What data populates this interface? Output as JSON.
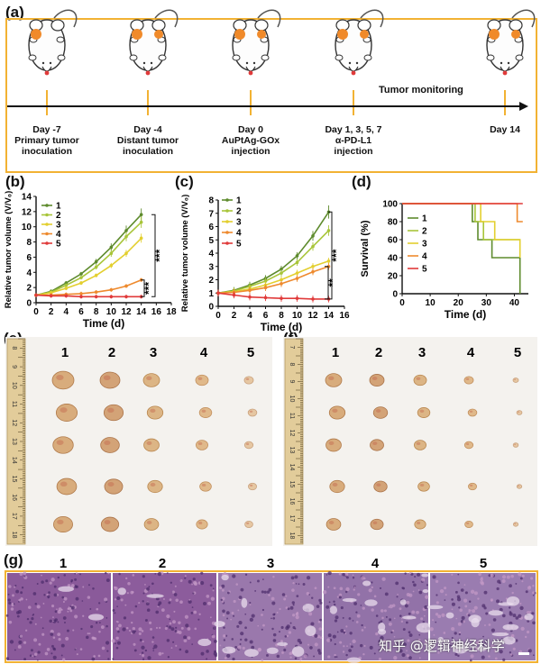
{
  "panels": {
    "a": "(a)",
    "b": "(b)",
    "c": "(c)",
    "d": "(d)",
    "e": "(e)",
    "f": "(f)",
    "g": "(g)"
  },
  "timeline": {
    "monitoring_label": "Tumor monitoring",
    "events": [
      {
        "label": "Day -7\nPrimary tumor\ninoculation"
      },
      {
        "label": "Day -4\nDistant tumor\ninoculation"
      },
      {
        "label": "Day 0\nAuPtAg-GOx\ninjection"
      },
      {
        "label": "Day 1, 3, 5, 7\nα-PD-L1\ninjection"
      },
      {
        "label": "Day 14"
      }
    ]
  },
  "colors": {
    "g1": "#5e8b2d",
    "g2": "#a8c53a",
    "g3": "#e3cf2f",
    "g4": "#ee8a2e",
    "g5": "#e03a3a",
    "frame": "#f2b233",
    "mouse_tumor": "#f08a2a"
  },
  "chart_data": [
    {
      "type": "line",
      "id": "b",
      "xlabel": "Time (d)",
      "ylabel": "Relative tumor volume (V/V₀)",
      "x": [
        0,
        2,
        4,
        6,
        8,
        10,
        12,
        14
      ],
      "xticks": [
        "0",
        "2",
        "4",
        "6",
        "8",
        "10",
        "12",
        "14",
        "16",
        "18"
      ],
      "xlim": [
        0,
        18
      ],
      "ylim": [
        0,
        14
      ],
      "yticks": [
        "0",
        "2",
        "4",
        "6",
        "8",
        "10",
        "12",
        "14"
      ],
      "series": [
        {
          "name": "1",
          "values": [
            1.0,
            1.5,
            2.6,
            3.8,
            5.4,
            7.3,
            9.5,
            11.6
          ]
        },
        {
          "name": "2",
          "values": [
            1.0,
            1.4,
            2.3,
            3.3,
            4.7,
            6.5,
            8.7,
            10.6
          ]
        },
        {
          "name": "3",
          "values": [
            1.0,
            1.3,
            1.9,
            2.6,
            3.6,
            4.9,
            6.5,
            8.5
          ]
        },
        {
          "name": "4",
          "values": [
            1.0,
            1.0,
            1.1,
            1.2,
            1.4,
            1.7,
            2.2,
            3.0
          ]
        },
        {
          "name": "5",
          "values": [
            1.0,
            0.9,
            0.9,
            0.8,
            0.8,
            0.8,
            0.8,
            0.8
          ]
        }
      ],
      "annotations": [
        "***",
        "***"
      ]
    },
    {
      "type": "line",
      "id": "c",
      "xlabel": "Time (d)",
      "ylabel": "Relative tumor volume (V/V₀)",
      "x": [
        0,
        2,
        4,
        6,
        8,
        10,
        12,
        14
      ],
      "xticks": [
        "0",
        "2",
        "4",
        "6",
        "8",
        "10",
        "12",
        "14",
        "16"
      ],
      "xlim": [
        0,
        16
      ],
      "ylim": [
        0,
        8
      ],
      "yticks": [
        "0",
        "1",
        "2",
        "3",
        "4",
        "5",
        "6",
        "7",
        "8"
      ],
      "series": [
        {
          "name": "1",
          "values": [
            1.0,
            1.2,
            1.6,
            2.1,
            2.8,
            3.8,
            5.3,
            7.1
          ]
        },
        {
          "name": "2",
          "values": [
            1.0,
            1.15,
            1.5,
            1.9,
            2.5,
            3.3,
            4.5,
            5.7
          ]
        },
        {
          "name": "3",
          "values": [
            1.0,
            1.1,
            1.3,
            1.6,
            2.0,
            2.5,
            3.0,
            3.4
          ]
        },
        {
          "name": "4",
          "values": [
            1.0,
            1.05,
            1.2,
            1.4,
            1.7,
            2.1,
            2.6,
            3.0
          ]
        },
        {
          "name": "5",
          "values": [
            1.0,
            0.85,
            0.7,
            0.65,
            0.6,
            0.6,
            0.55,
            0.55
          ]
        }
      ],
      "annotations": [
        "***",
        "**"
      ]
    },
    {
      "type": "line",
      "id": "d",
      "step": true,
      "xlabel": "Time (d)",
      "ylabel": "Survival (%)",
      "xlim": [
        0,
        45
      ],
      "ylim": [
        0,
        100
      ],
      "xticks": [
        "0",
        "10",
        "20",
        "30",
        "40"
      ],
      "yticks": [
        "0",
        "20",
        "40",
        "60",
        "80",
        "100"
      ],
      "series": [
        {
          "name": "1",
          "x": [
            0,
            25,
            25,
            27,
            27,
            32,
            32,
            37,
            37,
            42,
            42
          ],
          "values": [
            100,
            100,
            80,
            80,
            60,
            60,
            40,
            40,
            40,
            40,
            0
          ]
        },
        {
          "name": "2",
          "x": [
            0,
            26,
            26,
            29,
            29,
            42
          ],
          "values": [
            100,
            100,
            80,
            80,
            60,
            60
          ]
        },
        {
          "name": "3",
          "x": [
            0,
            28,
            28,
            33,
            33,
            42,
            42
          ],
          "values": [
            100,
            100,
            80,
            80,
            60,
            60,
            40
          ]
        },
        {
          "name": "4",
          "x": [
            0,
            41,
            41,
            43
          ],
          "values": [
            100,
            100,
            80,
            80
          ]
        },
        {
          "name": "5",
          "x": [
            0,
            43
          ],
          "values": [
            100,
            100
          ]
        }
      ]
    }
  ],
  "photos": {
    "e_columns": [
      "1",
      "2",
      "3",
      "4",
      "5"
    ],
    "f_columns": [
      "1",
      "2",
      "3",
      "4",
      "5"
    ],
    "ruler_e": [
      "8",
      "9",
      "10",
      "11",
      "12",
      "13",
      "14",
      "15",
      "16",
      "17",
      "18"
    ],
    "ruler_f": [
      "7",
      "8",
      "9",
      "10",
      "11",
      "12",
      "13",
      "14",
      "15",
      "16",
      "17",
      "18"
    ]
  },
  "histology": {
    "columns": [
      "1",
      "2",
      "3",
      "4",
      "5"
    ]
  },
  "watermark": "知乎 @逻辑神经科学"
}
